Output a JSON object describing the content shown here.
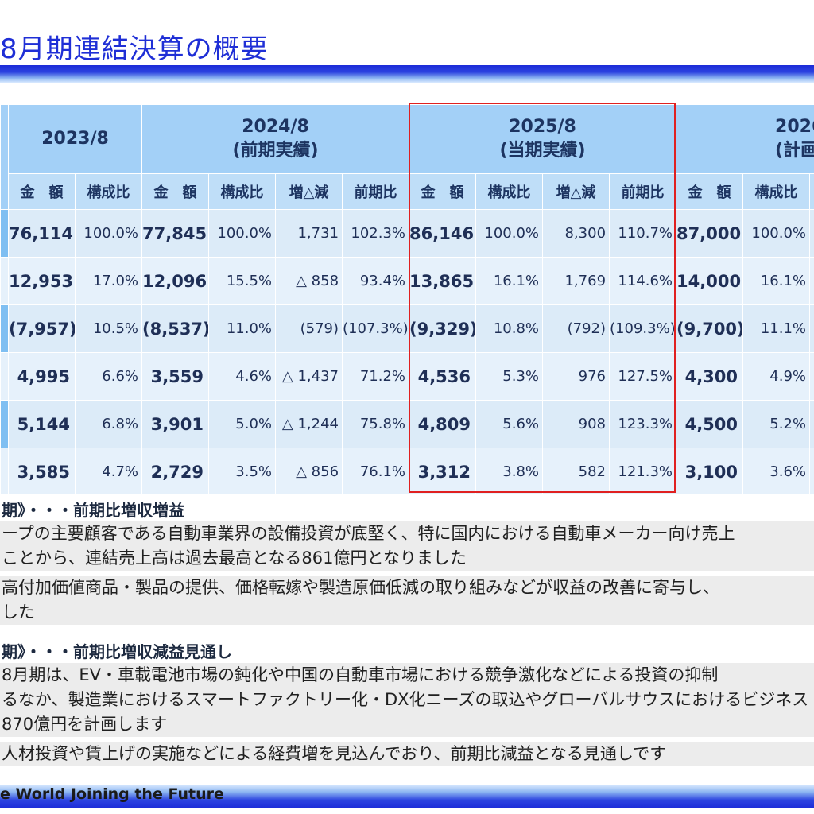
{
  "title": "8月期連結決算の概要",
  "table": {
    "periods": [
      {
        "line1": "2023/8",
        "line2": ""
      },
      {
        "line1": "2024/8",
        "line2": "(前期実績)"
      },
      {
        "line1": "2025/8",
        "line2": "(当期実績)"
      },
      {
        "line1": "2026",
        "line2": "(計画"
      }
    ],
    "sub_headers": {
      "amount": "金　額",
      "ratio": "構成比",
      "change": "増△減",
      "yoy": "前期比"
    },
    "rows": [
      {
        "y2023": {
          "amount": "76,114",
          "ratio": "100.0%"
        },
        "y2024": {
          "amount": "77,845",
          "ratio": "100.0%",
          "change": "1,731",
          "yoy": "102.3%"
        },
        "y2025": {
          "amount": "86,146",
          "ratio": "100.0%",
          "change": "8,300",
          "yoy": "110.7%"
        },
        "y2026": {
          "amount": "87,000",
          "ratio": "100.0%"
        }
      },
      {
        "y2023": {
          "amount": "12,953",
          "ratio": "17.0%"
        },
        "y2024": {
          "amount": "12,096",
          "ratio": "15.5%",
          "change": "△ 858",
          "yoy": "93.4%"
        },
        "y2025": {
          "amount": "13,865",
          "ratio": "16.1%",
          "change": "1,769",
          "yoy": "114.6%"
        },
        "y2026": {
          "amount": "14,000",
          "ratio": "16.1%"
        }
      },
      {
        "y2023": {
          "amount": "(7,957)",
          "ratio": "10.5%"
        },
        "y2024": {
          "amount": "(8,537)",
          "ratio": "11.0%",
          "change": "(579)",
          "yoy": "(107.3%)"
        },
        "y2025": {
          "amount": "(9,329)",
          "ratio": "10.8%",
          "change": "(792)",
          "yoy": "(109.3%)"
        },
        "y2026": {
          "amount": "(9,700)",
          "ratio": "11.1%"
        }
      },
      {
        "y2023": {
          "amount": "4,995",
          "ratio": "6.6%"
        },
        "y2024": {
          "amount": "3,559",
          "ratio": "4.6%",
          "change": "△ 1,437",
          "yoy": "71.2%"
        },
        "y2025": {
          "amount": "4,536",
          "ratio": "5.3%",
          "change": "976",
          "yoy": "127.5%"
        },
        "y2026": {
          "amount": "4,300",
          "ratio": "4.9%"
        }
      },
      {
        "y2023": {
          "amount": "5,144",
          "ratio": "6.8%"
        },
        "y2024": {
          "amount": "3,901",
          "ratio": "5.0%",
          "change": "△ 1,244",
          "yoy": "75.8%"
        },
        "y2025": {
          "amount": "4,809",
          "ratio": "5.6%",
          "change": "908",
          "yoy": "123.3%"
        },
        "y2026": {
          "amount": "4,500",
          "ratio": "5.2%"
        }
      },
      {
        "y2023": {
          "amount": "3,585",
          "ratio": "4.7%"
        },
        "y2024": {
          "amount": "2,729",
          "ratio": "3.5%",
          "change": "△ 856",
          "yoy": "76.1%"
        },
        "y2025": {
          "amount": "3,312",
          "ratio": "3.8%",
          "change": "582",
          "yoy": "121.3%"
        },
        "y2026": {
          "amount": "3,100",
          "ratio": "3.6%"
        }
      }
    ]
  },
  "current": {
    "heading": "期》・・・前期比増収増益",
    "lines": [
      "ープの主要顧客である自動車業界の設備投資が底堅く、特に国内における自動車メーカー向け売上",
      "ことから、連結売上高は過去最高となる861億円となりました",
      "高付加価値商品・製品の提供、価格転嫁や製造原価低減の取り組みなどが収益の改善に寄与し、",
      "した"
    ]
  },
  "next": {
    "heading": "期》・・・前期比増収減益見通し",
    "lines": [
      "8月期は、EV・車載電池市場の鈍化や中国の自動車市場における競争激化などによる投資の抑制",
      "るなか、製造業におけるスマートファクトリー化・DX化ニーズの取込やグローバルサウスにおけるビジネス",
      "870億円を計画します",
      "人材投資や賃上げの実施などによる経費増を見込んでおり、前期比減益となる見通しです"
    ]
  },
  "footer": {
    "slogan": "e World  Joining the Future"
  }
}
